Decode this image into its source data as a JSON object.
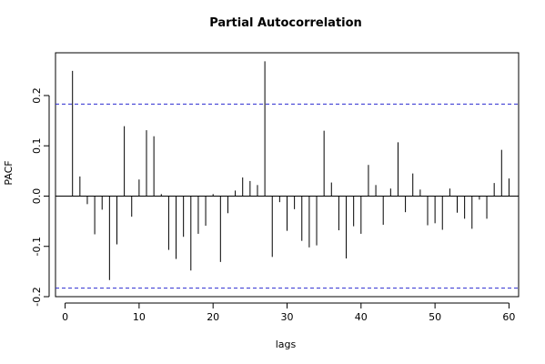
{
  "chart_data": {
    "type": "bar",
    "title": "Partial Autocorrelation",
    "xlabel": "lags",
    "ylabel": "PACF",
    "xlim": [
      -1.3,
      61.3
    ],
    "ylim": [
      -0.2,
      0.285
    ],
    "x_ticks": [
      0,
      10,
      20,
      30,
      40,
      50,
      60
    ],
    "y_ticks": [
      -0.2,
      -0.1,
      0.0,
      0.1,
      0.2
    ],
    "y_tick_labels": [
      "-0.2",
      "-0.1",
      "0.0",
      "0.1",
      "0.2"
    ],
    "confidence_bound": 0.183,
    "colors": {
      "bars": "#000000",
      "confidence": "#2b2bd0"
    },
    "lags": [
      1,
      2,
      3,
      4,
      5,
      6,
      7,
      8,
      9,
      10,
      11,
      12,
      13,
      14,
      15,
      16,
      17,
      18,
      19,
      20,
      21,
      22,
      23,
      24,
      25,
      26,
      27,
      28,
      29,
      30,
      31,
      32,
      33,
      34,
      35,
      36,
      37,
      38,
      39,
      40,
      41,
      42,
      43,
      44,
      45,
      46,
      47,
      48,
      49,
      50,
      51,
      52,
      53,
      54,
      55,
      56,
      57,
      58,
      59,
      60
    ],
    "values": [
      0.249,
      0.039,
      -0.016,
      -0.076,
      -0.027,
      -0.167,
      -0.096,
      0.139,
      -0.041,
      0.033,
      0.131,
      0.119,
      0.004,
      -0.107,
      -0.125,
      -0.081,
      -0.148,
      -0.075,
      -0.059,
      0.004,
      -0.131,
      -0.034,
      0.011,
      0.037,
      0.03,
      0.022,
      0.268,
      -0.121,
      -0.012,
      -0.069,
      -0.026,
      -0.089,
      -0.102,
      -0.098,
      0.13,
      0.027,
      -0.068,
      -0.124,
      -0.06,
      -0.075,
      0.062,
      0.022,
      -0.057,
      0.015,
      0.107,
      -0.032,
      0.045,
      0.013,
      -0.058,
      -0.054,
      -0.067,
      0.015,
      -0.033,
      -0.045,
      -0.065,
      -0.007,
      -0.045,
      0.026,
      0.092,
      0.035
    ]
  }
}
